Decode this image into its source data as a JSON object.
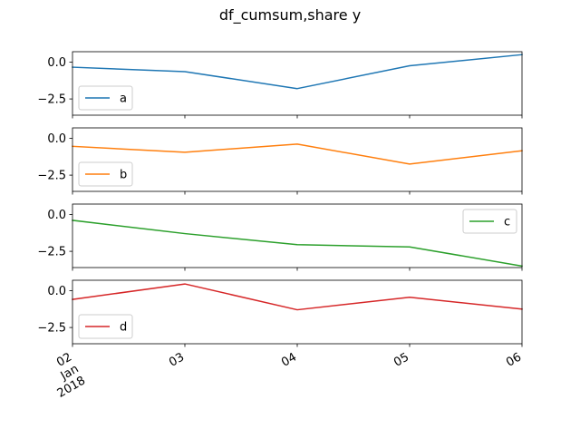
{
  "chart_data": {
    "type": "line",
    "title": "df_cumsum,share y",
    "x": [
      "2018-01-02",
      "2018-01-03",
      "2018-01-04",
      "2018-01-05",
      "2018-01-06"
    ],
    "x_tick_labels": [
      [
        "02",
        "Jan",
        "2018"
      ],
      [
        "03"
      ],
      [
        "04"
      ],
      [
        "05"
      ],
      [
        "06"
      ]
    ],
    "ylim": [
      -3.6,
      0.7
    ],
    "y_ticks": [
      0.0,
      -2.5
    ],
    "y_tick_labels": [
      "0.0",
      "−2.5"
    ],
    "shared_y": true,
    "grid": false,
    "series": [
      {
        "name": "a",
        "color": "#1f77b4",
        "values": [
          -0.35,
          -0.65,
          -1.8,
          -0.25,
          0.5
        ],
        "legend": "lower-left"
      },
      {
        "name": "b",
        "color": "#ff7f0e",
        "values": [
          -0.55,
          -0.95,
          -0.4,
          -1.75,
          -0.85
        ],
        "legend": "lower-left"
      },
      {
        "name": "c",
        "color": "#2ca02c",
        "values": [
          -0.4,
          -1.3,
          -2.05,
          -2.2,
          -3.5
        ],
        "legend": "upper-right"
      },
      {
        "name": "d",
        "color": "#d62728",
        "values": [
          -0.6,
          0.45,
          -1.3,
          -0.45,
          -1.25
        ],
        "legend": "lower-left"
      }
    ]
  }
}
